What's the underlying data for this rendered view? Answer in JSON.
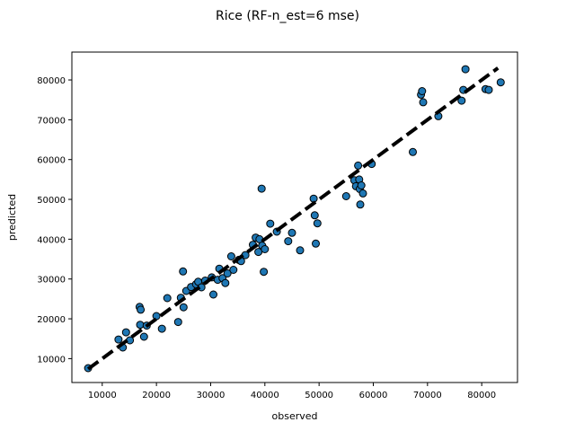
{
  "chart_data": {
    "type": "scatter",
    "title": "Rice (RF-n_est=6 mse)",
    "xlabel": "observed",
    "ylabel": "predicted",
    "xlim": [
      4400,
      86600
    ],
    "ylim": [
      4000,
      87000
    ],
    "xticks": [
      10000,
      20000,
      30000,
      40000,
      50000,
      60000,
      70000,
      80000
    ],
    "yticks": [
      10000,
      20000,
      30000,
      40000,
      50000,
      60000,
      70000,
      80000
    ],
    "xtick_labels": [
      "10000",
      "20000",
      "30000",
      "40000",
      "50000",
      "60000",
      "70000",
      "80000"
    ],
    "ytick_labels": [
      "10000",
      "20000",
      "30000",
      "40000",
      "50000",
      "60000",
      "70000",
      "80000"
    ],
    "grid": false,
    "marker_color": "#1f77b4",
    "marker_edge_color": "#000000",
    "reference_line": {
      "from": [
        7400,
        7400
      ],
      "to": [
        83000,
        83000
      ],
      "style": "dashed",
      "color": "#000000"
    },
    "points": [
      [
        7400,
        7600
      ],
      [
        13000,
        14800
      ],
      [
        13800,
        12800
      ],
      [
        14400,
        16600
      ],
      [
        15100,
        14600
      ],
      [
        16900,
        23000
      ],
      [
        17100,
        22300
      ],
      [
        17000,
        18500
      ],
      [
        17700,
        15500
      ],
      [
        18200,
        18300
      ],
      [
        20000,
        20700
      ],
      [
        21000,
        17500
      ],
      [
        22000,
        25200
      ],
      [
        24000,
        19200
      ],
      [
        24500,
        25300
      ],
      [
        24900,
        31900
      ],
      [
        25000,
        22900
      ],
      [
        25500,
        27000
      ],
      [
        26400,
        28000
      ],
      [
        27300,
        28700
      ],
      [
        27700,
        29300
      ],
      [
        28300,
        27900
      ],
      [
        29000,
        29600
      ],
      [
        30200,
        30400
      ],
      [
        30500,
        26100
      ],
      [
        31300,
        29800
      ],
      [
        31600,
        32600
      ],
      [
        32200,
        30200
      ],
      [
        32700,
        29000
      ],
      [
        33100,
        31400
      ],
      [
        33800,
        35700
      ],
      [
        34200,
        32300
      ],
      [
        35200,
        34800
      ],
      [
        35600,
        34500
      ],
      [
        36400,
        36000
      ],
      [
        37800,
        38600
      ],
      [
        38300,
        40400
      ],
      [
        39000,
        40000
      ],
      [
        39400,
        52700
      ],
      [
        38800,
        36800
      ],
      [
        39500,
        38400
      ],
      [
        39800,
        31800
      ],
      [
        40000,
        37500
      ],
      [
        41000,
        43900
      ],
      [
        42200,
        41900
      ],
      [
        44300,
        39500
      ],
      [
        45000,
        41600
      ],
      [
        46500,
        37200
      ],
      [
        49000,
        50200
      ],
      [
        49200,
        46000
      ],
      [
        49400,
        38900
      ],
      [
        49700,
        44000
      ],
      [
        55000,
        50800
      ],
      [
        56500,
        54800
      ],
      [
        56800,
        53300
      ],
      [
        57200,
        58500
      ],
      [
        57400,
        55000
      ],
      [
        57500,
        52600
      ],
      [
        57600,
        48700
      ],
      [
        57800,
        53500
      ],
      [
        58100,
        51500
      ],
      [
        59700,
        58900
      ],
      [
        67300,
        61900
      ],
      [
        68800,
        76300
      ],
      [
        69000,
        77200
      ],
      [
        69200,
        74400
      ],
      [
        72000,
        70900
      ],
      [
        76300,
        74800
      ],
      [
        76600,
        77500
      ],
      [
        77000,
        82700
      ],
      [
        80700,
        77700
      ],
      [
        81300,
        77500
      ],
      [
        83500,
        79400
      ]
    ]
  }
}
